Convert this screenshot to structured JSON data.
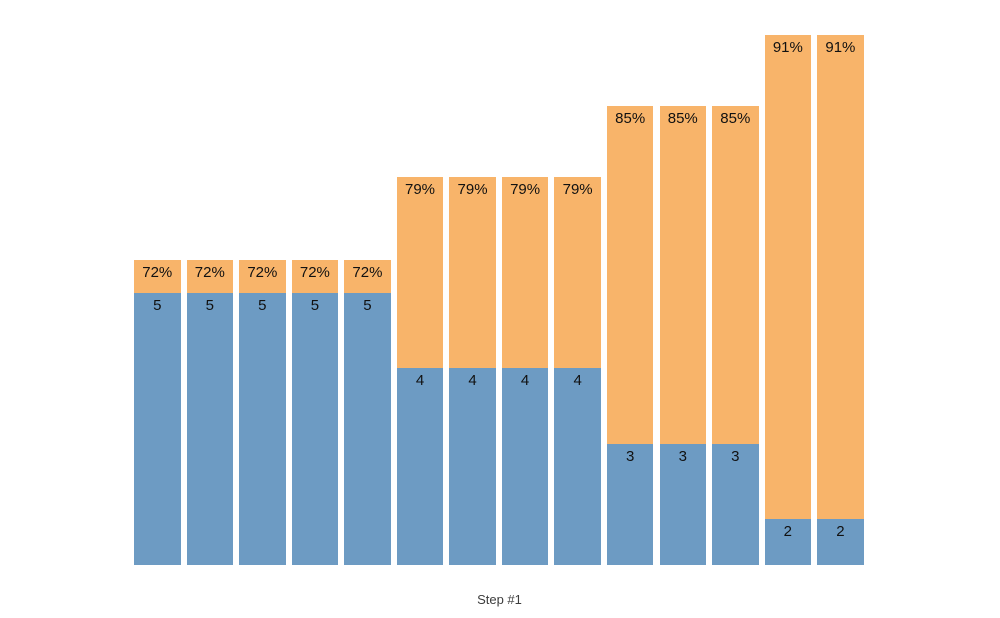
{
  "chart_data": {
    "type": "bar",
    "stacked": true,
    "title": "",
    "xlabel": "Step #1",
    "ylabel": "",
    "grid": false,
    "axes_visible": false,
    "legend": "none",
    "colors": {
      "top_segment": "#f8b46a",
      "bottom_segment": "#6d9bc3",
      "bar_label": "#111111",
      "xlabel": "#3d3d3d",
      "background": "#ffffff"
    },
    "series": [
      {
        "name": "bottom-count",
        "values": [
          5,
          5,
          5,
          5,
          5,
          4,
          4,
          4,
          4,
          3,
          3,
          3,
          2,
          2
        ]
      },
      {
        "name": "total-percent",
        "values": [
          72,
          72,
          72,
          72,
          72,
          79,
          79,
          79,
          79,
          85,
          85,
          85,
          91,
          91
        ]
      }
    ],
    "bars": [
      {
        "percent": 72,
        "count": 5,
        "percent_label": "72%",
        "count_label": "5"
      },
      {
        "percent": 72,
        "count": 5,
        "percent_label": "72%",
        "count_label": "5"
      },
      {
        "percent": 72,
        "count": 5,
        "percent_label": "72%",
        "count_label": "5"
      },
      {
        "percent": 72,
        "count": 5,
        "percent_label": "72%",
        "count_label": "5"
      },
      {
        "percent": 72,
        "count": 5,
        "percent_label": "72%",
        "count_label": "5"
      },
      {
        "percent": 79,
        "count": 4,
        "percent_label": "79%",
        "count_label": "4"
      },
      {
        "percent": 79,
        "count": 4,
        "percent_label": "79%",
        "count_label": "4"
      },
      {
        "percent": 79,
        "count": 4,
        "percent_label": "79%",
        "count_label": "4"
      },
      {
        "percent": 79,
        "count": 4,
        "percent_label": "79%",
        "count_label": "4"
      },
      {
        "percent": 85,
        "count": 3,
        "percent_label": "85%",
        "count_label": "3"
      },
      {
        "percent": 85,
        "count": 3,
        "percent_label": "85%",
        "count_label": "3"
      },
      {
        "percent": 85,
        "count": 3,
        "percent_label": "85%",
        "count_label": "3"
      },
      {
        "percent": 91,
        "count": 2,
        "percent_label": "91%",
        "count_label": "2"
      },
      {
        "percent": 91,
        "count": 2,
        "percent_label": "91%",
        "count_label": "2"
      }
    ]
  }
}
